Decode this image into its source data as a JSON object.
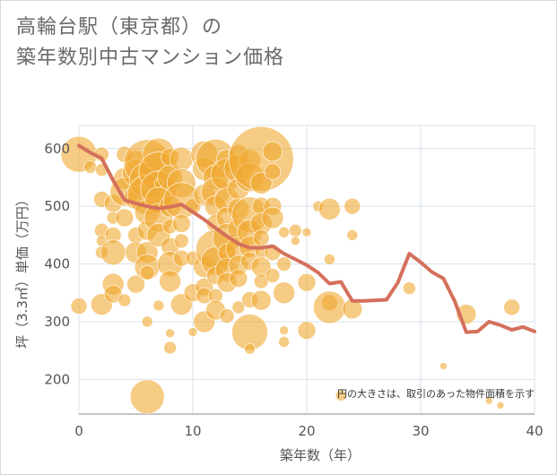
{
  "title_line1": "高輪台駅（東京都）の",
  "title_line2": "築年数別中古マンション価格",
  "colors": {
    "bubble": "#f0a830",
    "line": "#d4705c",
    "grid": "#d8e2ea"
  },
  "chart_data": {
    "type": "scatter",
    "title": "高輪台駅（東京都）の築年数別中古マンション価格",
    "xlabel": "築年数（年）",
    "ylabel": "坪（3.3㎡）単価（万円）",
    "xlim": [
      0,
      40
    ],
    "ylim": [
      140,
      640
    ],
    "x_ticks": [
      0,
      10,
      20,
      30,
      40
    ],
    "y_ticks": [
      200,
      300,
      400,
      500,
      600
    ],
    "grid": true,
    "note": "円の大きさは、取引のあった物件面積を示す",
    "bubbles": [
      [
        0,
        590,
        20
      ],
      [
        0,
        327,
        9
      ],
      [
        1,
        568,
        7
      ],
      [
        2,
        590,
        8
      ],
      [
        2,
        563,
        7
      ],
      [
        2,
        512,
        9
      ],
      [
        2,
        458,
        8
      ],
      [
        2,
        440,
        6
      ],
      [
        2,
        420,
        7
      ],
      [
        2,
        330,
        12
      ],
      [
        3,
        505,
        10
      ],
      [
        3,
        480,
        7
      ],
      [
        3,
        450,
        9
      ],
      [
        3,
        420,
        14
      ],
      [
        3,
        365,
        12
      ],
      [
        3,
        348,
        10
      ],
      [
        4,
        590,
        9
      ],
      [
        4,
        548,
        12
      ],
      [
        4,
        525,
        16
      ],
      [
        4,
        480,
        10
      ],
      [
        4,
        337,
        7
      ],
      [
        5,
        580,
        11
      ],
      [
        5,
        558,
        15
      ],
      [
        5,
        515,
        13
      ],
      [
        5,
        450,
        9
      ],
      [
        5,
        420,
        12
      ],
      [
        5,
        365,
        10
      ],
      [
        6,
        575,
        26
      ],
      [
        6,
        545,
        20
      ],
      [
        6,
        520,
        22
      ],
      [
        6,
        490,
        14
      ],
      [
        6,
        458,
        11
      ],
      [
        6,
        420,
        12
      ],
      [
        6,
        395,
        14
      ],
      [
        6,
        385,
        8
      ],
      [
        6,
        300,
        6
      ],
      [
        6,
        170,
        19
      ],
      [
        7,
        590,
        18
      ],
      [
        7,
        560,
        22
      ],
      [
        7,
        530,
        20
      ],
      [
        7,
        510,
        15
      ],
      [
        7,
        480,
        16
      ],
      [
        7,
        450,
        13
      ],
      [
        7,
        328,
        6
      ],
      [
        7,
        540,
        5
      ],
      [
        8,
        585,
        10
      ],
      [
        8,
        550,
        14
      ],
      [
        8,
        500,
        12
      ],
      [
        8,
        465,
        8
      ],
      [
        8,
        430,
        10
      ],
      [
        8,
        400,
        14
      ],
      [
        8,
        370,
        12
      ],
      [
        8,
        280,
        5
      ],
      [
        8,
        255,
        7
      ],
      [
        9,
        582,
        13
      ],
      [
        9,
        540,
        16
      ],
      [
        9,
        510,
        20
      ],
      [
        9,
        470,
        10
      ],
      [
        9,
        440,
        8
      ],
      [
        9,
        410,
        9
      ],
      [
        9,
        330,
        12
      ],
      [
        10,
        500,
        9
      ],
      [
        10,
        410,
        8
      ],
      [
        10,
        350,
        10
      ],
      [
        10,
        282,
        5
      ],
      [
        11,
        590,
        15
      ],
      [
        11,
        565,
        13
      ],
      [
        11,
        520,
        12
      ],
      [
        11,
        395,
        12
      ],
      [
        11,
        360,
        10
      ],
      [
        11,
        345,
        9
      ],
      [
        11,
        300,
        12
      ],
      [
        12,
        582,
        22
      ],
      [
        12,
        550,
        14
      ],
      [
        12,
        525,
        16
      ],
      [
        12,
        500,
        12
      ],
      [
        12,
        470,
        10
      ],
      [
        12,
        425,
        22
      ],
      [
        12,
        405,
        16
      ],
      [
        12,
        380,
        10
      ],
      [
        12,
        345,
        8
      ],
      [
        12,
        320,
        11
      ],
      [
        13,
        580,
        12
      ],
      [
        13,
        555,
        18
      ],
      [
        13,
        510,
        14
      ],
      [
        13,
        480,
        12
      ],
      [
        13,
        445,
        16
      ],
      [
        13,
        420,
        10
      ],
      [
        13,
        390,
        13
      ],
      [
        13,
        368,
        11
      ],
      [
        13,
        310,
        8
      ],
      [
        14,
        590,
        11
      ],
      [
        14,
        565,
        16
      ],
      [
        14,
        530,
        12
      ],
      [
        14,
        495,
        12
      ],
      [
        14,
        460,
        12
      ],
      [
        14,
        425,
        14
      ],
      [
        14,
        398,
        11
      ],
      [
        14,
        375,
        10
      ],
      [
        14,
        325,
        7
      ],
      [
        15,
        580,
        12
      ],
      [
        15,
        550,
        16
      ],
      [
        15,
        485,
        20
      ],
      [
        15,
        455,
        14
      ],
      [
        15,
        430,
        12
      ],
      [
        15,
        405,
        10
      ],
      [
        15,
        338,
        9
      ],
      [
        15,
        282,
        20
      ],
      [
        15,
        253,
        6
      ],
      [
        16,
        582,
        36
      ],
      [
        16,
        540,
        12
      ],
      [
        16,
        500,
        10
      ],
      [
        16,
        470,
        12
      ],
      [
        16,
        445,
        9
      ],
      [
        16,
        420,
        7
      ],
      [
        16,
        395,
        11
      ],
      [
        16,
        370,
        8
      ],
      [
        16,
        337,
        11
      ],
      [
        17,
        595,
        11
      ],
      [
        17,
        560,
        9
      ],
      [
        17,
        500,
        10
      ],
      [
        17,
        480,
        12
      ],
      [
        17,
        420,
        9
      ],
      [
        17,
        380,
        8
      ],
      [
        18,
        455,
        6
      ],
      [
        18,
        400,
        8
      ],
      [
        18,
        350,
        12
      ],
      [
        18,
        285,
        5
      ],
      [
        18,
        265,
        6
      ],
      [
        19,
        458,
        7
      ],
      [
        19,
        440,
        5
      ],
      [
        20,
        455,
        5
      ],
      [
        20,
        368,
        10
      ],
      [
        20,
        285,
        10
      ],
      [
        21,
        500,
        6
      ],
      [
        22,
        495,
        12
      ],
      [
        22,
        408,
        6
      ],
      [
        22,
        333,
        9
      ],
      [
        22,
        325,
        18
      ],
      [
        23,
        172,
        6
      ],
      [
        24,
        500,
        9
      ],
      [
        24,
        450,
        6
      ],
      [
        24,
        322,
        11
      ],
      [
        29,
        358,
        7
      ],
      [
        32,
        223,
        4
      ],
      [
        34,
        313,
        11
      ],
      [
        36,
        163,
        4
      ],
      [
        37,
        155,
        4
      ],
      [
        38,
        325,
        9
      ]
    ],
    "line": {
      "x": [
        0,
        1,
        2,
        3,
        4,
        5,
        6,
        7,
        8,
        9,
        10,
        11,
        12,
        13,
        14,
        15,
        16,
        17,
        18,
        19,
        20,
        21,
        22,
        23,
        24,
        25,
        26,
        27,
        28,
        29,
        30,
        31,
        32,
        33,
        34,
        35,
        36,
        37,
        38,
        39,
        40
      ],
      "y": [
        605,
        593,
        583,
        545,
        511,
        505,
        500,
        496,
        499,
        503,
        490,
        477,
        462,
        448,
        435,
        428,
        428,
        431,
        418,
        408,
        398,
        385,
        366,
        369,
        336,
        336,
        337,
        338,
        368,
        418,
        403,
        386,
        375,
        335,
        282,
        283,
        300,
        294,
        286,
        291,
        283
      ]
    }
  }
}
